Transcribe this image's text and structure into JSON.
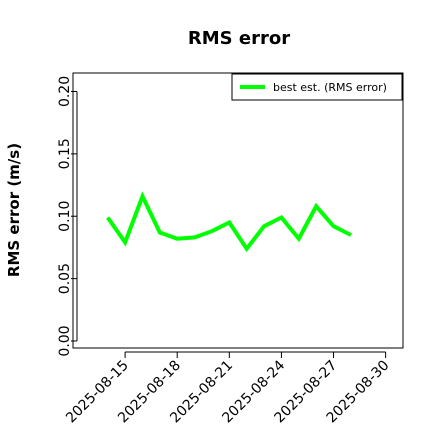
{
  "chart_data": {
    "type": "line",
    "title": "RMS error",
    "xlabel": "",
    "ylabel": "RMS error (m/s)",
    "xlim": [
      "2025-08-12",
      "2025-08-31"
    ],
    "ylim": [
      0.0,
      0.21
    ],
    "y_ticks": [
      0.0,
      0.05,
      0.1,
      0.15,
      0.2
    ],
    "y_tick_labels": [
      "0.00",
      "0.05",
      "0.10",
      "0.15",
      "0.20"
    ],
    "x_ticks": [
      "2025-08-15",
      "2025-08-18",
      "2025-08-21",
      "2025-08-24",
      "2025-08-27",
      "2025-08-30"
    ],
    "x_tick_labels": [
      "2025-08-15",
      "2025-08-18",
      "2025-08-21",
      "2025-08-24",
      "2025-08-27",
      "2025-08-30"
    ],
    "highlight_tick": "2025-08-21",
    "grid": false,
    "legend_position": "top-right",
    "series": [
      {
        "name": "best est. (RMS error)",
        "color": "#00ff00",
        "x": [
          "2025-08-14",
          "2025-08-15",
          "2025-08-16",
          "2025-08-17",
          "2025-08-18",
          "2025-08-19",
          "2025-08-20",
          "2025-08-21",
          "2025-08-22",
          "2025-08-23",
          "2025-08-24",
          "2025-08-25",
          "2025-08-26",
          "2025-08-27",
          "2025-08-28"
        ],
        "values": [
          0.099,
          0.079,
          0.116,
          0.087,
          0.082,
          0.083,
          0.088,
          0.095,
          0.074,
          0.092,
          0.099,
          0.082,
          0.108,
          0.092,
          0.085
        ]
      }
    ],
    "colors": {
      "highlight_tick_color": "#228b22",
      "axis_color": "#000000"
    }
  }
}
